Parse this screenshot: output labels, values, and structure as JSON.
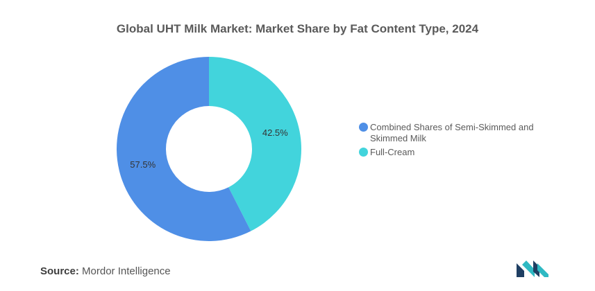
{
  "chart_data": {
    "type": "pie",
    "style": "donut",
    "title": "Global UHT Milk Market: Market Share by Fat Content Type, 2024",
    "categories": [
      "Combined Shares of Semi-Skimmed and Skimmed Milk",
      "Full-Cream"
    ],
    "values": [
      57.5,
      42.5
    ],
    "value_labels": [
      "57.5%",
      "42.5%"
    ],
    "colors": [
      "#4f8fe6",
      "#42d4dc"
    ],
    "legend_position": "right"
  },
  "legend": {
    "items": [
      {
        "label": "Combined Shares of Semi-Skimmed and Skimmed Milk",
        "color": "#4f8fe6"
      },
      {
        "label": "Full-Cream",
        "color": "#42d4dc"
      }
    ]
  },
  "footer": {
    "source_label": "Source:",
    "source_value": "Mordor Intelligence"
  },
  "logo": {
    "colors": [
      "#1f3f63",
      "#2fb9c3"
    ]
  }
}
